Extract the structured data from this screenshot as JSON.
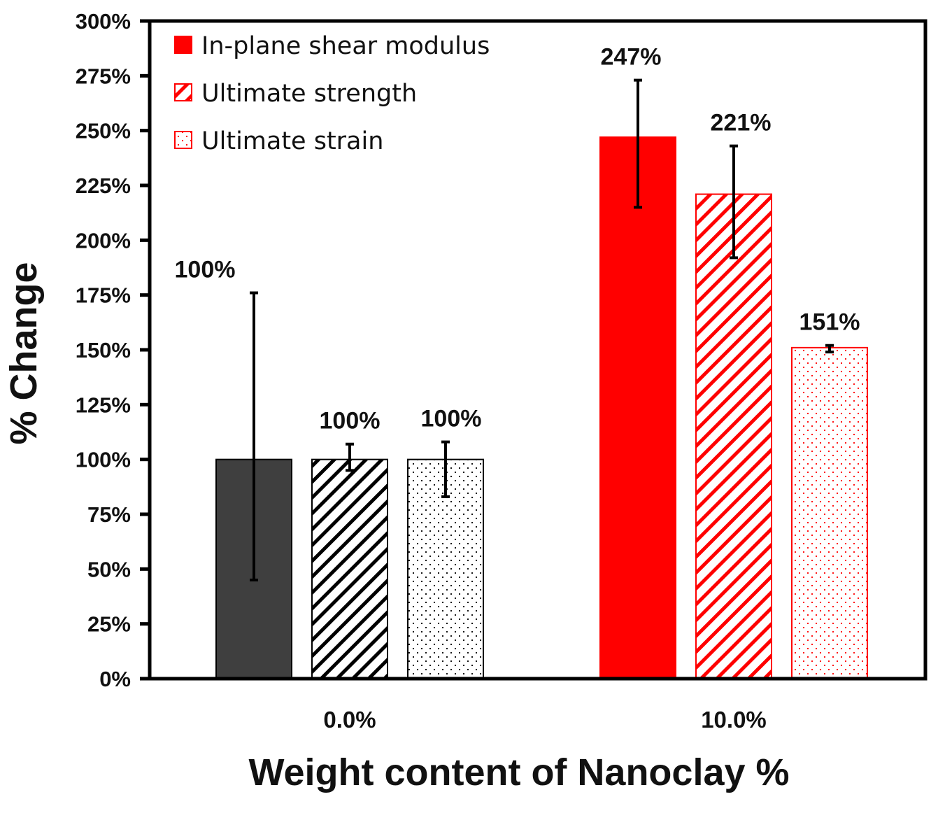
{
  "chart_data": {
    "type": "bar",
    "title": "",
    "xlabel": "Weight content of Nanoclay %",
    "ylabel": "% Change",
    "ylim": [
      0,
      300
    ],
    "yticks": [
      0,
      25,
      50,
      75,
      100,
      125,
      150,
      175,
      200,
      225,
      250,
      275,
      300
    ],
    "ytick_labels": [
      "0%",
      "25%",
      "50%",
      "75%",
      "100%",
      "125%",
      "150%",
      "175%",
      "200%",
      "225%",
      "250%",
      "275%",
      "300%"
    ],
    "categories": [
      "0.0%",
      "10.0%"
    ],
    "legend_position": "top-left",
    "series": [
      {
        "name": "In-plane shear modulus",
        "pattern": "solid",
        "values": [
          100,
          247
        ],
        "error_low": [
          45,
          215
        ],
        "error_high": [
          176,
          273
        ],
        "data_labels": [
          "100%",
          "247%"
        ]
      },
      {
        "name": "Ultimate strength",
        "pattern": "hatch",
        "values": [
          100,
          221
        ],
        "error_low": [
          95,
          192
        ],
        "error_high": [
          107,
          243
        ],
        "data_labels": [
          "100%",
          "221%"
        ]
      },
      {
        "name": "Ultimate strain",
        "pattern": "dots",
        "values": [
          100,
          151
        ],
        "error_low": [
          83,
          149
        ],
        "error_high": [
          108,
          152
        ],
        "data_labels": [
          "100%",
          "151%"
        ]
      }
    ],
    "category_colors": {
      "0.0%": {
        "fill": "#3f3f3f",
        "stroke": "#000000"
      },
      "10.0%": {
        "fill": "#ff0000",
        "stroke": "#ff0000"
      }
    },
    "legend_color": "#ff0000",
    "error_bar_color": "#000000"
  }
}
